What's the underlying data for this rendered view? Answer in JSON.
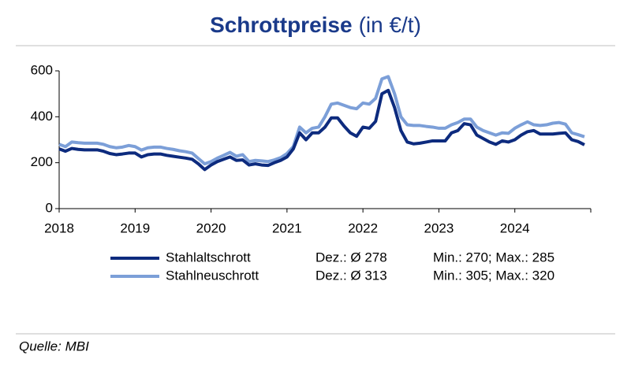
{
  "chart_data": {
    "type": "line",
    "title": "Schrottpreise",
    "title_unit": "(in €/t)",
    "categories": [
      "2018",
      null,
      null,
      null,
      null,
      null,
      null,
      null,
      null,
      null,
      null,
      null,
      "2019",
      null,
      null,
      null,
      null,
      null,
      null,
      null,
      null,
      null,
      null,
      null,
      "2020",
      null,
      null,
      null,
      null,
      null,
      null,
      null,
      null,
      null,
      null,
      null,
      "2021",
      null,
      null,
      null,
      null,
      null,
      null,
      null,
      null,
      null,
      null,
      null,
      "2022",
      null,
      null,
      null,
      null,
      null,
      null,
      null,
      null,
      null,
      null,
      null,
      "2023",
      null,
      null,
      null,
      null,
      null,
      null,
      null,
      null,
      null,
      null,
      null,
      "2024",
      null,
      null,
      null,
      null,
      null,
      null,
      null,
      null,
      null,
      null,
      null
    ],
    "series": [
      {
        "name": "Stahlaltschrott",
        "color": "#0d2b7e",
        "notes": [
          "Dez.: Ø 278",
          "Min.: 270; Max.: 285"
        ],
        "values": [
          260,
          250,
          262,
          258,
          256,
          256,
          256,
          250,
          240,
          235,
          238,
          242,
          242,
          225,
          235,
          238,
          238,
          232,
          228,
          224,
          220,
          215,
          195,
          170,
          190,
          205,
          215,
          225,
          210,
          212,
          190,
          195,
          190,
          188,
          200,
          210,
          225,
          260,
          330,
          300,
          330,
          330,
          355,
          395,
          395,
          360,
          330,
          315,
          355,
          350,
          380,
          500,
          515,
          440,
          340,
          290,
          282,
          285,
          290,
          295,
          295,
          295,
          330,
          340,
          370,
          365,
          320,
          305,
          290,
          280,
          295,
          290,
          300,
          320,
          335,
          340,
          325,
          325,
          325,
          328,
          330,
          300,
          292,
          278
        ]
      },
      {
        "name": "Stahlneuschrott",
        "color": "#7c9fd8",
        "notes": [
          "Dez.: Ø 313",
          "Min.: 305; Max.: 320"
        ],
        "values": [
          280,
          270,
          290,
          287,
          285,
          285,
          285,
          280,
          270,
          265,
          268,
          275,
          270,
          255,
          265,
          268,
          268,
          262,
          258,
          252,
          248,
          242,
          218,
          195,
          205,
          220,
          232,
          245,
          228,
          235,
          205,
          210,
          208,
          205,
          212,
          222,
          240,
          270,
          355,
          330,
          350,
          355,
          400,
          455,
          460,
          450,
          440,
          435,
          460,
          455,
          480,
          565,
          575,
          500,
          400,
          365,
          362,
          362,
          358,
          355,
          350,
          350,
          365,
          375,
          390,
          390,
          355,
          340,
          330,
          320,
          330,
          328,
          350,
          365,
          378,
          365,
          362,
          365,
          372,
          375,
          368,
          330,
          322,
          313
        ]
      }
    ],
    "ylim": [
      0,
      600
    ],
    "yticks": [
      0,
      200,
      400,
      600
    ],
    "source": "Quelle: MBI"
  }
}
